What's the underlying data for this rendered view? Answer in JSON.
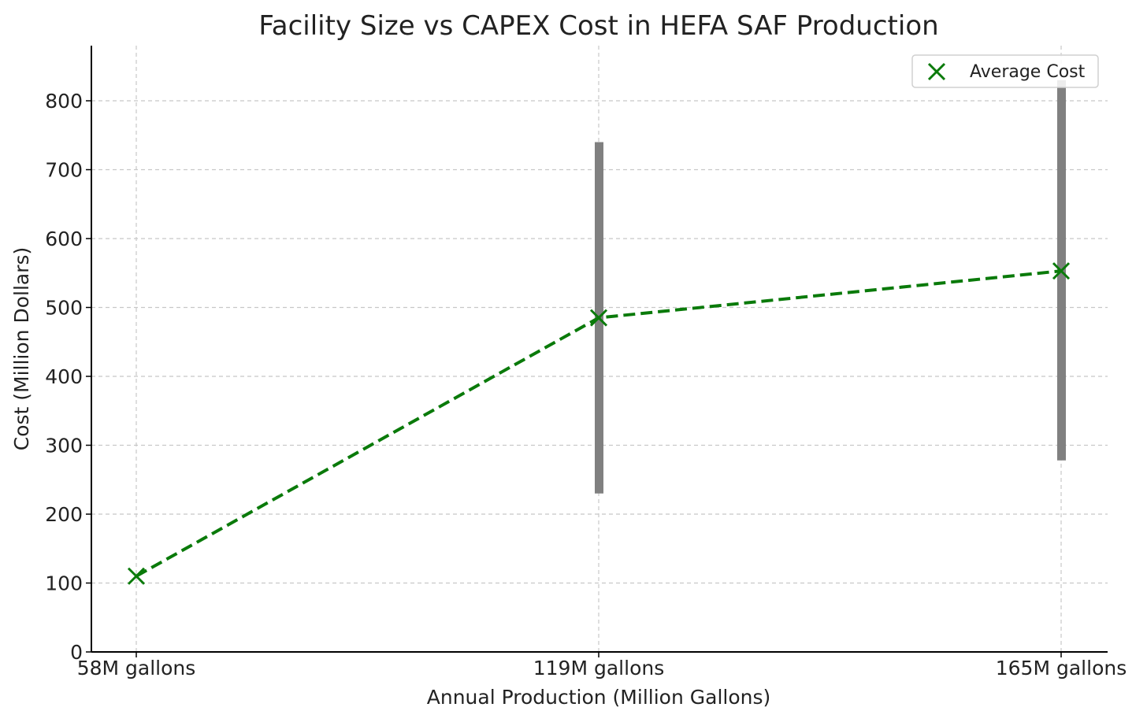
{
  "chart_data": {
    "type": "line",
    "title": "Facility Size vs CAPEX Cost in HEFA SAF Production",
    "xlabel": "Annual Production (Million Gallons)",
    "ylabel": "Cost (Million Dollars)",
    "categories": [
      "58M gallons",
      "119M gallons",
      "165M gallons"
    ],
    "series": [
      {
        "name": "Average Cost",
        "values": [
          110,
          485,
          553
        ],
        "marker": "x",
        "line_style": "dashed",
        "color": "#0a7a0a"
      }
    ],
    "ranges": [
      null,
      {
        "low": 230,
        "high": 740
      },
      {
        "low": 278,
        "high": 830
      }
    ],
    "range_color": "#808080",
    "ylim": [
      0,
      880
    ],
    "yticks": [
      0,
      100,
      200,
      300,
      400,
      500,
      600,
      700,
      800
    ],
    "grid": true,
    "legend": {
      "placement": "top-right",
      "entries": [
        "Average Cost"
      ]
    }
  }
}
